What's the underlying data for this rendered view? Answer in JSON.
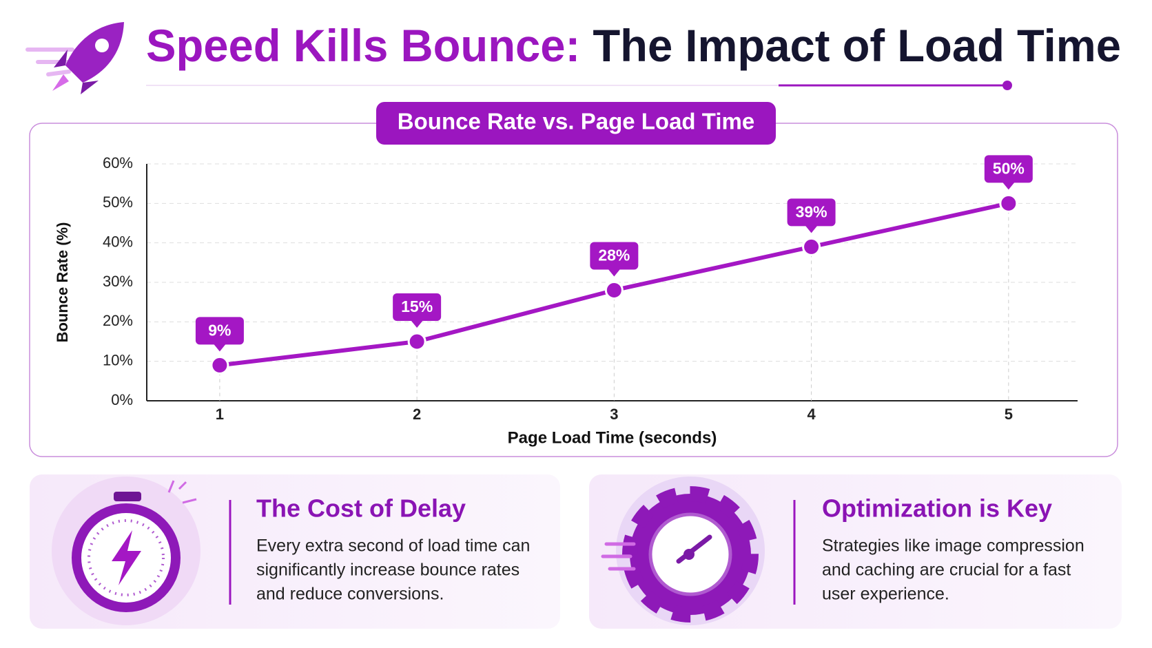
{
  "header": {
    "title_accent": "Speed Kills Bounce:",
    "title_rest": "The Impact of Load Time"
  },
  "chart_data": {
    "type": "line",
    "title": "Bounce Rate vs. Page Load Time",
    "x_label": "Page Load Time (seconds)",
    "y_label": "Bounce Rate (%)",
    "x": [
      1,
      2,
      3,
      4,
      5
    ],
    "series": [
      {
        "name": "Bounce Rate",
        "color": "#a417c4",
        "values": [
          9,
          15,
          28,
          39,
          50
        ],
        "value_labels": [
          "9%",
          "15%",
          "28%",
          "39%",
          "50%"
        ]
      }
    ],
    "xlim": [
      0.63,
      5.35
    ],
    "xticks": [
      1,
      2,
      3,
      4,
      5
    ],
    "ylim": [
      0,
      60
    ],
    "yticks": [
      {
        "value": 0,
        "label": "0%"
      },
      {
        "value": 10,
        "label": "10%"
      },
      {
        "value": 20,
        "label": "20%"
      },
      {
        "value": 30,
        "label": "30%"
      },
      {
        "value": 40,
        "label": "40%"
      },
      {
        "value": 50,
        "label": "50%"
      },
      {
        "value": 60,
        "label": "60%"
      }
    ],
    "grid": true
  },
  "cards": [
    {
      "title": "The Cost of Delay",
      "lines": [
        "Every extra second of load time can",
        "significantly increase bounce rates",
        "and reduce conversions."
      ]
    },
    {
      "title": "Optimization is Key",
      "lines": [
        "Strategies like image compression",
        "and caching are crucial for a fast",
        "user experience."
      ]
    }
  ]
}
